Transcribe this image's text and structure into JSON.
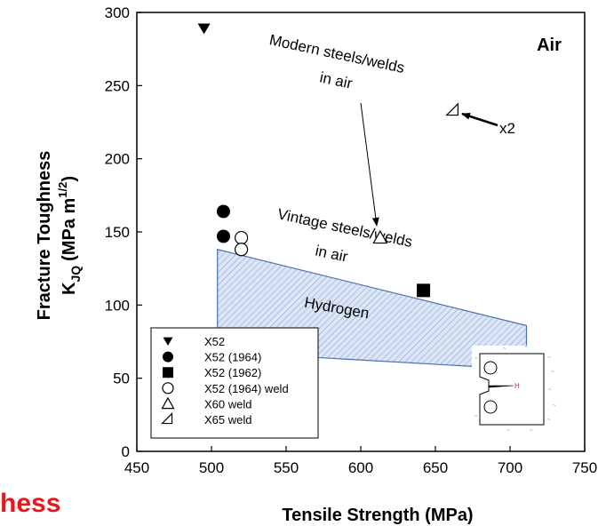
{
  "chart_data": {
    "type": "scatter",
    "xlabel": "Tensile Strength (MPa)",
    "ylabel_main": "Fracture Toughness",
    "ylabel_sub_K": "K",
    "ylabel_sub_JQ": "JQ",
    "ylabel_units_open": "(MPa m",
    "ylabel_units_exp": "1/2",
    "ylabel_units_close": ")",
    "xlim": [
      450,
      750
    ],
    "ylim": [
      0,
      300
    ],
    "xticks": [
      450,
      500,
      550,
      600,
      650,
      700,
      750
    ],
    "yticks": [
      0,
      50,
      100,
      150,
      200,
      250,
      300
    ],
    "grid": false,
    "legend_position": "bottom-left",
    "corner_label": "Air",
    "series": [
      {
        "name": "X52",
        "marker": "filled-down-triangle",
        "points": [
          [
            495,
            289
          ]
        ]
      },
      {
        "name": "X52 (1964)",
        "marker": "filled-circle",
        "points": [
          [
            508,
            164
          ],
          [
            508,
            147
          ]
        ]
      },
      {
        "name": "X52 (1962)",
        "marker": "filled-square",
        "points": [
          [
            642,
            110
          ]
        ]
      },
      {
        "name": "X52 (1964) weld",
        "marker": "open-circle",
        "points": [
          [
            520,
            146
          ],
          [
            520,
            138
          ]
        ]
      },
      {
        "name": "X60 weld",
        "marker": "open-up-triangle",
        "points": [
          [
            613,
            146
          ]
        ]
      },
      {
        "name": "X65 weld",
        "marker": "open-right-triangle",
        "points": [
          [
            662,
            233
          ]
        ]
      }
    ],
    "hydrogen_region": {
      "label": "Hydrogen",
      "polygon": [
        [
          504,
          138
        ],
        [
          711,
          86
        ],
        [
          711,
          56
        ],
        [
          504,
          68
        ]
      ]
    },
    "annotations": {
      "modern_line1": "Modern  steels/welds",
      "modern_line2": "in air",
      "vintage_line1": "Vintage steels/welds",
      "vintage_line2": "in air",
      "x2_label": "x2"
    }
  },
  "cut_title_fragment": "hess",
  "colors": {
    "hydrogen_fill": "#d7e2f3",
    "hydrogen_stroke": "#4a6fb5",
    "title_red": "#e8161e",
    "inset_red": "#e8161e"
  }
}
